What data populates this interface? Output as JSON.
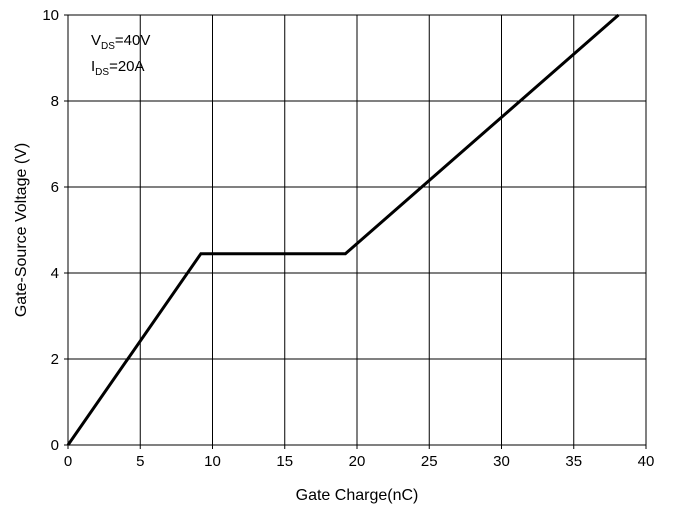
{
  "chart_data": {
    "type": "line",
    "title": "",
    "xlabel": "Gate Charge(nC)",
    "ylabel": "Gate-Source Voltage (V)",
    "xlim": [
      0,
      40
    ],
    "ylim": [
      0,
      10
    ],
    "x_ticks": [
      0,
      5,
      10,
      15,
      20,
      25,
      30,
      35,
      40
    ],
    "y_ticks": [
      0,
      2,
      4,
      6,
      8,
      10
    ],
    "grid": true,
    "legend": "none",
    "annotations": [
      {
        "main": "V",
        "sub": "DS",
        "rest": "=40V"
      },
      {
        "main": "I",
        "sub": "DS",
        "rest": "=20A"
      }
    ],
    "series": [
      {
        "color": "#000000",
        "points": [
          {
            "x": 0,
            "y": 0
          },
          {
            "x": 9.2,
            "y": 4.45
          },
          {
            "x": 19.2,
            "y": 4.45
          },
          {
            "x": 38.1,
            "y": 10
          }
        ]
      }
    ]
  }
}
